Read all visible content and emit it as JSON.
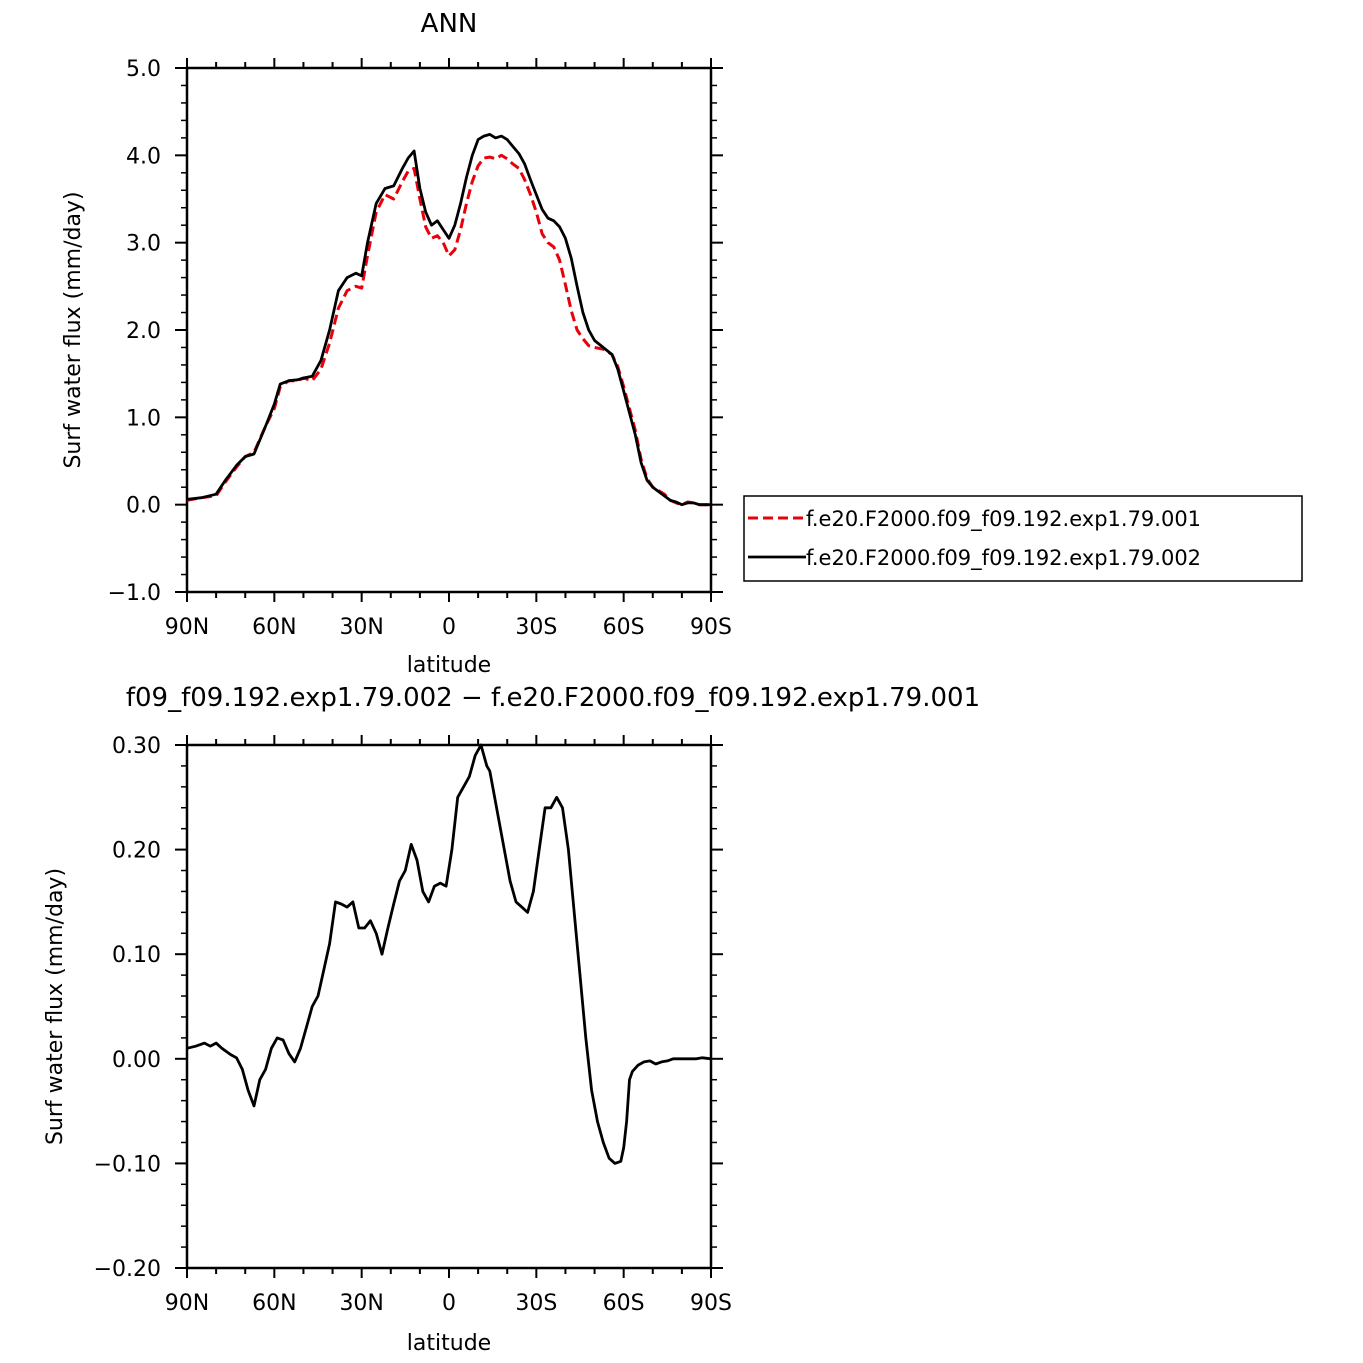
{
  "chart_data": [
    {
      "type": "line",
      "title": "ANN",
      "xlabel": "latitude",
      "ylabel": "Surf water flux (mm/day)",
      "xlim": [
        -90,
        90
      ],
      "ylim": [
        -1.0,
        5.0
      ],
      "x_ticks": [
        {
          "value": -90,
          "label": "90N"
        },
        {
          "value": -60,
          "label": "60N"
        },
        {
          "value": -30,
          "label": "30N"
        },
        {
          "value": 0,
          "label": "0"
        },
        {
          "value": 30,
          "label": "30S"
        },
        {
          "value": 60,
          "label": "60S"
        },
        {
          "value": 90,
          "label": "90S"
        }
      ],
      "y_ticks": [
        {
          "value": -1.0,
          "label": "−1.0"
        },
        {
          "value": 0.0,
          "label": "0.0"
        },
        {
          "value": 1.0,
          "label": "1.0"
        },
        {
          "value": 2.0,
          "label": "2.0"
        },
        {
          "value": 3.0,
          "label": "3.0"
        },
        {
          "value": 4.0,
          "label": "4.0"
        },
        {
          "value": 5.0,
          "label": "5.0"
        }
      ],
      "legend": "right",
      "series": [
        {
          "name": "f.e20.F2000.f09_f09.192.exp1.79.001",
          "color": "#e8000b",
          "dash": "dashed",
          "x": [
            -90,
            -85,
            -80,
            -77,
            -73,
            -70,
            -67,
            -63,
            -60,
            -58,
            -55,
            -52,
            -50,
            -47,
            -44,
            -41,
            -38,
            -35,
            -32,
            -30,
            -28,
            -25,
            -22,
            -19,
            -16,
            -14,
            -12,
            -10,
            -8,
            -6,
            -4,
            -2,
            0,
            2,
            4,
            6,
            8,
            10,
            12,
            14,
            16,
            18,
            20,
            22,
            24,
            26,
            28,
            30,
            32,
            34,
            36,
            38,
            40,
            42,
            44,
            46,
            48,
            50,
            53,
            56,
            58,
            60,
            62,
            64,
            66,
            68,
            70,
            72,
            74,
            76,
            78,
            80,
            82,
            84,
            86,
            88,
            90
          ],
          "y": [
            0.05,
            0.08,
            0.1,
            0.25,
            0.43,
            0.55,
            0.6,
            0.9,
            1.1,
            1.35,
            1.42,
            1.42,
            1.45,
            1.42,
            1.55,
            1.85,
            2.25,
            2.45,
            2.5,
            2.48,
            2.85,
            3.35,
            3.55,
            3.5,
            3.7,
            3.82,
            3.85,
            3.5,
            3.18,
            3.05,
            3.08,
            3.0,
            2.85,
            2.92,
            3.15,
            3.45,
            3.7,
            3.88,
            3.97,
            3.98,
            3.96,
            4.0,
            3.96,
            3.9,
            3.85,
            3.72,
            3.55,
            3.35,
            3.1,
            3.0,
            2.95,
            2.8,
            2.52,
            2.22,
            2.0,
            1.9,
            1.82,
            1.8,
            1.78,
            1.72,
            1.58,
            1.35,
            1.1,
            0.85,
            0.52,
            0.3,
            0.2,
            0.16,
            0.12,
            0.05,
            0.02,
            0.0,
            0.03,
            0.02,
            0.0,
            0.0,
            0.0
          ]
        },
        {
          "name": "f.e20.F2000.f09_f09.192.exp1.79.002",
          "color": "#000000",
          "dash": "solid",
          "x": [
            -90,
            -85,
            -80,
            -77,
            -73,
            -70,
            -67,
            -63,
            -60,
            -58,
            -55,
            -52,
            -50,
            -47,
            -44,
            -41,
            -38,
            -35,
            -32,
            -30,
            -28,
            -25,
            -22,
            -19,
            -16,
            -14,
            -12,
            -10,
            -8,
            -6,
            -4,
            -2,
            0,
            2,
            4,
            6,
            8,
            10,
            12,
            14,
            16,
            18,
            20,
            22,
            24,
            26,
            28,
            30,
            32,
            34,
            36,
            38,
            40,
            42,
            44,
            46,
            48,
            50,
            53,
            56,
            58,
            60,
            62,
            64,
            66,
            68,
            70,
            72,
            74,
            76,
            78,
            80,
            82,
            84,
            86,
            88,
            90
          ],
          "y": [
            0.06,
            0.08,
            0.12,
            0.27,
            0.45,
            0.55,
            0.58,
            0.9,
            1.15,
            1.38,
            1.42,
            1.43,
            1.45,
            1.47,
            1.65,
            2.0,
            2.45,
            2.6,
            2.65,
            2.62,
            3.0,
            3.45,
            3.62,
            3.65,
            3.85,
            3.97,
            4.05,
            3.62,
            3.35,
            3.2,
            3.25,
            3.15,
            3.05,
            3.2,
            3.45,
            3.75,
            4.0,
            4.18,
            4.22,
            4.24,
            4.2,
            4.22,
            4.18,
            4.1,
            4.02,
            3.9,
            3.72,
            3.55,
            3.38,
            3.28,
            3.25,
            3.18,
            3.05,
            2.82,
            2.5,
            2.2,
            2.0,
            1.88,
            1.8,
            1.72,
            1.55,
            1.3,
            1.05,
            0.8,
            0.48,
            0.28,
            0.2,
            0.15,
            0.1,
            0.05,
            0.03,
            0.0,
            0.02,
            0.02,
            0.0,
            0.0,
            0.0
          ]
        }
      ]
    },
    {
      "type": "line",
      "title": "f09_f09.192.exp1.79.002 − f.e20.F2000.f09_f09.192.exp1.79.001",
      "xlabel": "latitude",
      "ylabel": "Surf water flux (mm/day)",
      "xlim": [
        -90,
        90
      ],
      "ylim": [
        -0.2,
        0.3
      ],
      "x_ticks": [
        {
          "value": -90,
          "label": "90N"
        },
        {
          "value": -60,
          "label": "60N"
        },
        {
          "value": -30,
          "label": "30N"
        },
        {
          "value": 0,
          "label": "0"
        },
        {
          "value": 30,
          "label": "30S"
        },
        {
          "value": 60,
          "label": "60S"
        },
        {
          "value": 90,
          "label": "90S"
        }
      ],
      "y_ticks": [
        {
          "value": -0.2,
          "label": "−0.20"
        },
        {
          "value": -0.1,
          "label": "−0.10"
        },
        {
          "value": 0.0,
          "label": "0.00"
        },
        {
          "value": 0.1,
          "label": "0.10"
        },
        {
          "value": 0.2,
          "label": "0.20"
        },
        {
          "value": 0.3,
          "label": "0.30"
        }
      ],
      "series": [
        {
          "color": "#000000",
          "dash": "solid",
          "x": [
            -90,
            -87,
            -84,
            -82,
            -80,
            -78,
            -75,
            -73,
            -71,
            -69,
            -67,
            -65,
            -63,
            -61,
            -59,
            -57,
            -55,
            -53,
            -51,
            -49,
            -47,
            -45,
            -43,
            -41,
            -39,
            -37,
            -35,
            -33,
            -31,
            -29,
            -27,
            -25,
            -23,
            -21,
            -19,
            -17,
            -15,
            -13,
            -11,
            -9,
            -7,
            -5,
            -3,
            -1,
            1,
            3,
            5,
            7,
            9,
            10,
            11,
            12,
            13,
            14,
            15,
            17,
            19,
            21,
            23,
            25,
            27,
            29,
            31,
            33,
            35,
            37,
            39,
            41,
            43,
            45,
            47,
            49,
            51,
            53,
            55,
            57,
            59,
            60,
            61,
            62,
            63,
            65,
            67,
            69,
            71,
            73,
            75,
            77,
            79,
            81,
            83,
            85,
            87,
            90
          ],
          "y": [
            0.01,
            0.012,
            0.015,
            0.012,
            0.015,
            0.01,
            0.004,
            0.001,
            -0.01,
            -0.03,
            -0.045,
            -0.02,
            -0.01,
            0.01,
            0.02,
            0.018,
            0.005,
            -0.003,
            0.01,
            0.03,
            0.05,
            0.06,
            0.085,
            0.11,
            0.15,
            0.148,
            0.145,
            0.15,
            0.125,
            0.125,
            0.132,
            0.12,
            0.1,
            0.125,
            0.148,
            0.17,
            0.18,
            0.205,
            0.19,
            0.16,
            0.15,
            0.165,
            0.168,
            0.165,
            0.2,
            0.25,
            0.26,
            0.27,
            0.29,
            0.295,
            0.3,
            0.29,
            0.28,
            0.275,
            0.26,
            0.23,
            0.2,
            0.17,
            0.15,
            0.145,
            0.14,
            0.16,
            0.2,
            0.24,
            0.24,
            0.25,
            0.24,
            0.2,
            0.14,
            0.08,
            0.02,
            -0.03,
            -0.06,
            -0.08,
            -0.095,
            -0.1,
            -0.098,
            -0.085,
            -0.06,
            -0.02,
            -0.012,
            -0.006,
            -0.003,
            -0.002,
            -0.005,
            -0.003,
            -0.002,
            0.0,
            0.0,
            0.0,
            0.0,
            0.0,
            0.001,
            0.0
          ]
        }
      ]
    }
  ]
}
